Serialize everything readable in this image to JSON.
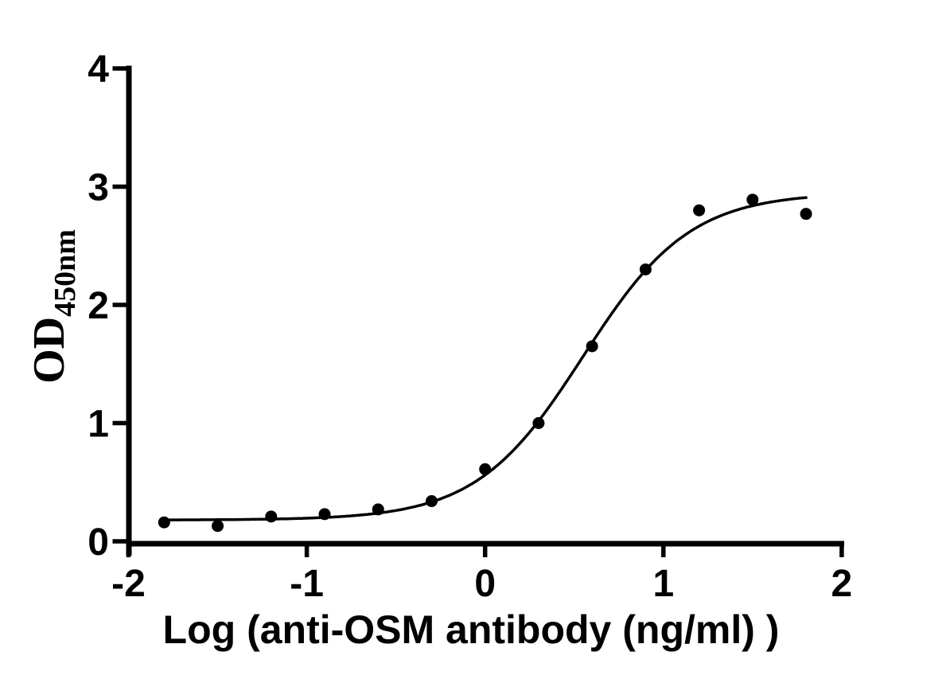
{
  "page": {
    "background": "#ffffff"
  },
  "chart_data": {
    "type": "scatter",
    "subtype": "sigmoidal-dose-response",
    "title": "",
    "xlabel": "Log (anti-OSM antibody (ng/ml) )",
    "ylabel": "OD",
    "ylabel_subscript": "450nm",
    "xlim": [
      -2,
      2
    ],
    "ylim": [
      0,
      4
    ],
    "x_tick_labels": [
      "-2",
      "-1",
      "0",
      "1",
      "2"
    ],
    "y_tick_labels": [
      "0",
      "1",
      "2",
      "3",
      "4"
    ],
    "grid": false,
    "legend": "none",
    "colors": {
      "background": "#ffffff",
      "axis": "#000000",
      "marker": "#000000",
      "curve": "#000000",
      "text": "#000000"
    },
    "points": [
      {
        "x": -1.8,
        "y": 0.16
      },
      {
        "x": -1.5,
        "y": 0.13
      },
      {
        "x": -1.2,
        "y": 0.21
      },
      {
        "x": -0.9,
        "y": 0.23
      },
      {
        "x": -0.6,
        "y": 0.27
      },
      {
        "x": -0.3,
        "y": 0.34
      },
      {
        "x": 0.0,
        "y": 0.61
      },
      {
        "x": 0.3,
        "y": 1.0
      },
      {
        "x": 0.6,
        "y": 1.65
      },
      {
        "x": 0.9,
        "y": 2.3
      },
      {
        "x": 1.2,
        "y": 2.8
      },
      {
        "x": 1.5,
        "y": 2.89
      },
      {
        "x": 1.8,
        "y": 2.77
      }
    ],
    "fit_curve": {
      "model": "4PL",
      "bottom": 0.18,
      "top": 2.95,
      "log_ec50": 0.55,
      "hill_slope": 1.45,
      "x_start": -1.82,
      "x_end": 1.8
    }
  }
}
